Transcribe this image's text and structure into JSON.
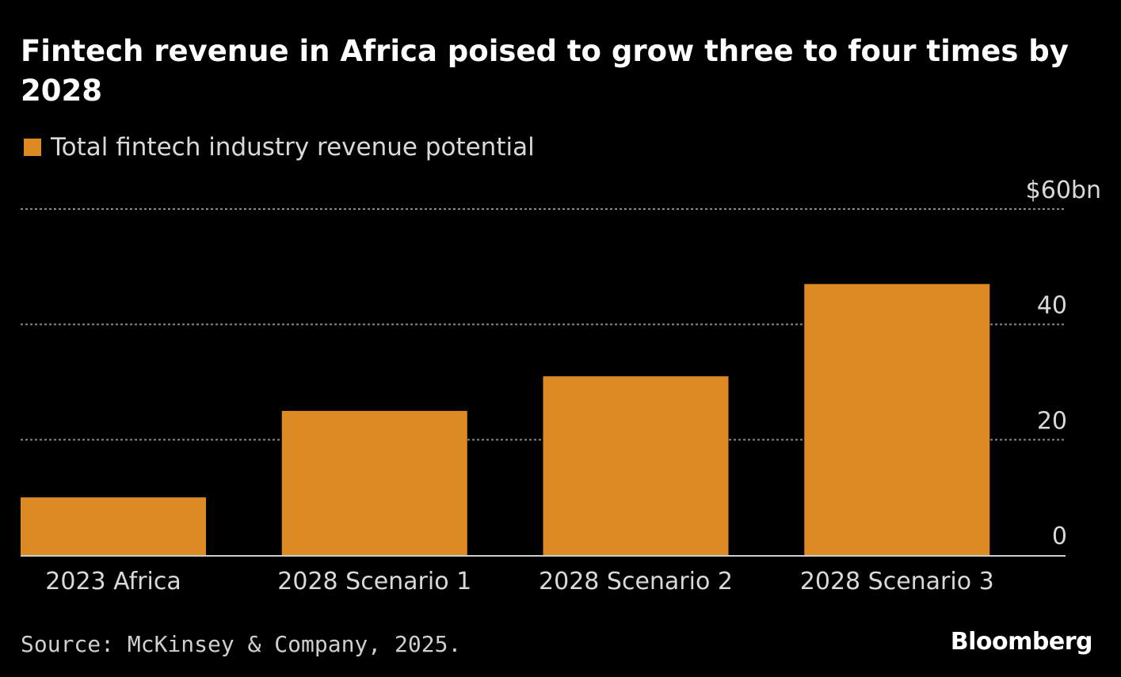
{
  "header": {
    "title": "Fintech revenue in Africa poised to grow three to four times by 2028"
  },
  "legend": {
    "label": "Total fintech industry revenue potential"
  },
  "footer": {
    "source": "Source: McKinsey & Company, 2025.",
    "brand": "Bloomberg"
  },
  "colors": {
    "background": "#000000",
    "bar": "#dc8a23",
    "grid": "#8a8a8a",
    "axis": "#cccccc"
  },
  "chart_data": {
    "type": "bar",
    "title": "Fintech revenue in Africa poised to grow three to four times by 2028",
    "categories": [
      "2023 Africa",
      "2028 Scenario 1",
      "2028 Scenario 2",
      "2028 Scenario 3"
    ],
    "series": [
      {
        "name": "Total fintech industry revenue potential",
        "values": [
          10,
          25,
          31,
          47
        ]
      }
    ],
    "ylim": [
      0,
      60
    ],
    "yticks": [
      {
        "value": 0,
        "label": "0"
      },
      {
        "value": 20,
        "label": "20"
      },
      {
        "value": 40,
        "label": "40"
      },
      {
        "value": 60,
        "label": "$60bn"
      }
    ],
    "grid": true,
    "y_axis_position": "right",
    "legend_position": "top-left"
  }
}
